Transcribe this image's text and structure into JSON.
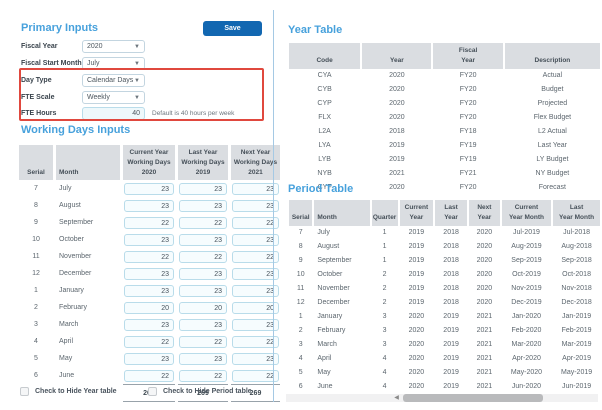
{
  "colors": {
    "accent-blue": "#47a1dc",
    "save-blue": "#1267b1",
    "highlight-red": "#e0483e",
    "header-bg": "#dadde1",
    "header-text": "#454f58",
    "box-border": "#b9dcea",
    "box-bg": "#f6fcfe",
    "divider": "#a5c9e4",
    "scroll-thumb": "#b9babc"
  },
  "primary_inputs": {
    "title": "Primary Inputs",
    "save_label": "Save",
    "fields": [
      {
        "label": "Fiscal Year",
        "value": "2020"
      },
      {
        "label": "Fiscal Start Month",
        "value": "July"
      },
      {
        "label": "Day Type",
        "value": "Calendar Days"
      },
      {
        "label": "FTE Scale",
        "value": "Weekly"
      },
      {
        "label": "FTE Hours",
        "value": "40",
        "hint": "Default is 40 hours per week"
      }
    ]
  },
  "working_days": {
    "title": "Working Days Inputs",
    "columns": [
      [
        "Serial"
      ],
      [
        "Month"
      ],
      [
        "Current Year",
        "Working Days",
        "2020"
      ],
      [
        "Last Year",
        "Working Days",
        "2019"
      ],
      [
        "Next Year",
        "Working Days",
        "2021"
      ]
    ],
    "rows": [
      [
        "7",
        "July",
        "23",
        "23",
        "23"
      ],
      [
        "8",
        "August",
        "23",
        "23",
        "23"
      ],
      [
        "9",
        "September",
        "22",
        "22",
        "22"
      ],
      [
        "10",
        "October",
        "23",
        "23",
        "23"
      ],
      [
        "11",
        "November",
        "22",
        "22",
        "22"
      ],
      [
        "12",
        "December",
        "23",
        "23",
        "23"
      ],
      [
        "1",
        "January",
        "23",
        "23",
        "23"
      ],
      [
        "2",
        "February",
        "20",
        "20",
        "20"
      ],
      [
        "3",
        "March",
        "23",
        "23",
        "23"
      ],
      [
        "4",
        "April",
        "22",
        "22",
        "22"
      ],
      [
        "5",
        "May",
        "23",
        "23",
        "23"
      ],
      [
        "6",
        "June",
        "22",
        "22",
        "22"
      ]
    ],
    "totals": [
      "269",
      "269",
      "269"
    ]
  },
  "year_table": {
    "title": "Year Table",
    "columns": [
      [
        "Code"
      ],
      [
        "Year"
      ],
      [
        "Fiscal",
        "Year"
      ],
      [
        "Description"
      ]
    ],
    "rows": [
      [
        "CYA",
        "2020",
        "FY20",
        "Actual"
      ],
      [
        "CYB",
        "2020",
        "FY20",
        "Budget"
      ],
      [
        "CYP",
        "2020",
        "FY20",
        "Projected"
      ],
      [
        "FLX",
        "2020",
        "FY20",
        "Flex Budget"
      ],
      [
        "L2A",
        "2018",
        "FY18",
        "L2 Actual"
      ],
      [
        "LYA",
        "2019",
        "FY19",
        "Last Year"
      ],
      [
        "LYB",
        "2019",
        "FY19",
        "LY Budget"
      ],
      [
        "NYB",
        "2021",
        "FY21",
        "NY Budget"
      ],
      [
        "CYF",
        "2020",
        "FY20",
        "Forecast"
      ]
    ]
  },
  "period_table": {
    "title": "Period Table",
    "columns": [
      [
        "Serial"
      ],
      [
        "Month"
      ],
      [
        "Quarter"
      ],
      [
        "Current",
        "Year"
      ],
      [
        "Last",
        "Year"
      ],
      [
        "Next",
        "Year"
      ],
      [
        "Current",
        "Year Month"
      ],
      [
        "Last",
        "Year Month"
      ]
    ],
    "rows": [
      [
        "7",
        "July",
        "1",
        "2019",
        "2018",
        "2020",
        "Jul-2019",
        "Jul-2018"
      ],
      [
        "8",
        "August",
        "1",
        "2019",
        "2018",
        "2020",
        "Aug-2019",
        "Aug-2018"
      ],
      [
        "9",
        "September",
        "1",
        "2019",
        "2018",
        "2020",
        "Sep-2019",
        "Sep-2018"
      ],
      [
        "10",
        "October",
        "2",
        "2019",
        "2018",
        "2020",
        "Oct-2019",
        "Oct-2018"
      ],
      [
        "11",
        "November",
        "2",
        "2019",
        "2018",
        "2020",
        "Nov-2019",
        "Nov-2018"
      ],
      [
        "12",
        "December",
        "2",
        "2019",
        "2018",
        "2020",
        "Dec-2019",
        "Dec-2018"
      ],
      [
        "1",
        "January",
        "3",
        "2020",
        "2019",
        "2021",
        "Jan-2020",
        "Jan-2019"
      ],
      [
        "2",
        "February",
        "3",
        "2020",
        "2019",
        "2021",
        "Feb-2020",
        "Feb-2019"
      ],
      [
        "3",
        "March",
        "3",
        "2020",
        "2019",
        "2021",
        "Mar-2020",
        "Mar-2019"
      ],
      [
        "4",
        "April",
        "4",
        "2020",
        "2019",
        "2021",
        "Apr-2020",
        "Apr-2019"
      ],
      [
        "5",
        "May",
        "4",
        "2020",
        "2019",
        "2021",
        "May-2020",
        "May-2019"
      ],
      [
        "6",
        "June",
        "4",
        "2020",
        "2019",
        "2021",
        "Jun-2020",
        "Jun-2019"
      ]
    ]
  },
  "checkboxes": [
    {
      "label": "Check to Hide Year table",
      "checked": false
    },
    {
      "label": "Check to Hide Period table",
      "checked": false
    }
  ]
}
